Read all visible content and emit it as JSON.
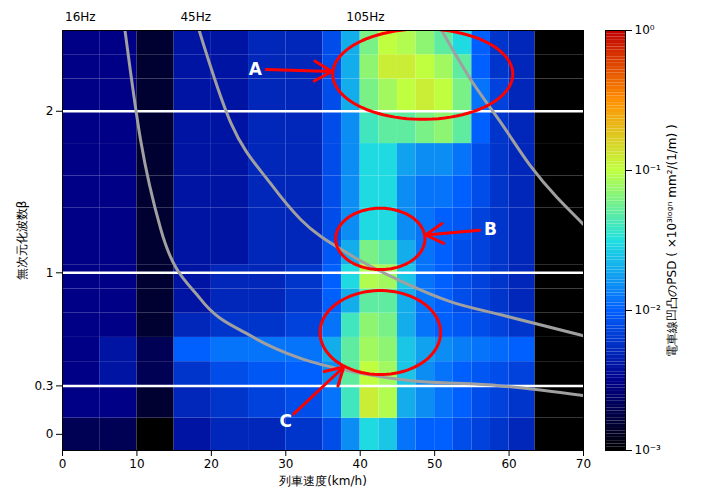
{
  "chart_data": {
    "type": "heatmap",
    "xlabel": "列車速度(km/h)",
    "ylabel": "無次元化波数β",
    "xlim": [
      0,
      70
    ],
    "xticks": [
      0,
      10,
      20,
      30,
      40,
      50,
      60,
      70
    ],
    "ylim": [
      -0.1,
      2.5
    ],
    "yticks": [
      0,
      0.3,
      1,
      2
    ],
    "x_bins": [
      0,
      5,
      10,
      15,
      20,
      25,
      30,
      35,
      37.5,
      40,
      42.5,
      45,
      47.5,
      50,
      52.5,
      55,
      57.5,
      60,
      63.5,
      70
    ],
    "y_bins": [
      -0.1,
      0.1,
      0.3,
      0.45,
      0.6,
      0.75,
      0.9,
      1.05,
      1.2,
      1.4,
      1.6,
      1.8,
      2.0,
      2.2,
      2.35,
      2.5
    ],
    "cells": [
      [
        0.002,
        0.002,
        0.001,
        0.004,
        0.005,
        0.005,
        0.006,
        0.008,
        0.015,
        0.03,
        0.025,
        0.012,
        0.01,
        0.01,
        0.008,
        0.007,
        0.006,
        0.005,
        0.001
      ],
      [
        0.003,
        0.003,
        0.0015,
        0.005,
        0.006,
        0.007,
        0.008,
        0.012,
        0.04,
        0.12,
        0.09,
        0.02,
        0.015,
        0.012,
        0.01,
        0.008,
        0.007,
        0.006,
        0.001
      ],
      [
        0.003,
        0.004,
        0.002,
        0.006,
        0.008,
        0.009,
        0.01,
        0.015,
        0.05,
        0.1,
        0.08,
        0.025,
        0.015,
        0.012,
        0.01,
        0.009,
        0.008,
        0.007,
        0.001
      ],
      [
        0.003,
        0.004,
        0.002,
        0.01,
        0.012,
        0.012,
        0.012,
        0.02,
        0.05,
        0.08,
        0.07,
        0.025,
        0.018,
        0.015,
        0.013,
        0.012,
        0.011,
        0.01,
        0.001
      ],
      [
        0.003,
        0.003,
        0.0015,
        0.005,
        0.006,
        0.006,
        0.007,
        0.012,
        0.04,
        0.07,
        0.06,
        0.02,
        0.012,
        0.01,
        0.009,
        0.008,
        0.007,
        0.006,
        0.001
      ],
      [
        0.003,
        0.003,
        0.0015,
        0.004,
        0.005,
        0.005,
        0.006,
        0.01,
        0.02,
        0.05,
        0.05,
        0.02,
        0.012,
        0.01,
        0.008,
        0.007,
        0.006,
        0.005,
        0.001
      ],
      [
        0.003,
        0.003,
        0.0015,
        0.004,
        0.005,
        0.005,
        0.006,
        0.01,
        0.03,
        0.09,
        0.08,
        0.025,
        0.012,
        0.01,
        0.008,
        0.007,
        0.006,
        0.005,
        0.001
      ],
      [
        0.003,
        0.003,
        0.0015,
        0.004,
        0.004,
        0.005,
        0.005,
        0.009,
        0.02,
        0.06,
        0.05,
        0.02,
        0.012,
        0.01,
        0.008,
        0.007,
        0.006,
        0.005,
        0.001
      ],
      [
        0.003,
        0.003,
        0.0015,
        0.004,
        0.004,
        0.005,
        0.005,
        0.008,
        0.015,
        0.03,
        0.03,
        0.015,
        0.012,
        0.01,
        0.009,
        0.007,
        0.006,
        0.005,
        0.001
      ],
      [
        0.003,
        0.003,
        0.0015,
        0.004,
        0.004,
        0.005,
        0.005,
        0.008,
        0.015,
        0.03,
        0.03,
        0.015,
        0.012,
        0.012,
        0.01,
        0.008,
        0.006,
        0.005,
        0.001
      ],
      [
        0.003,
        0.003,
        0.0015,
        0.004,
        0.004,
        0.005,
        0.005,
        0.008,
        0.015,
        0.03,
        0.03,
        0.018,
        0.015,
        0.015,
        0.012,
        0.008,
        0.006,
        0.005,
        0.001
      ],
      [
        0.003,
        0.003,
        0.0015,
        0.004,
        0.004,
        0.005,
        0.005,
        0.008,
        0.015,
        0.04,
        0.05,
        0.05,
        0.06,
        0.07,
        0.05,
        0.01,
        0.006,
        0.005,
        0.001
      ],
      [
        0.003,
        0.003,
        0.0015,
        0.004,
        0.004,
        0.005,
        0.005,
        0.008,
        0.02,
        0.06,
        0.08,
        0.1,
        0.12,
        0.1,
        0.06,
        0.012,
        0.007,
        0.005,
        0.001
      ],
      [
        0.003,
        0.003,
        0.0015,
        0.004,
        0.004,
        0.005,
        0.005,
        0.008,
        0.02,
        0.07,
        0.12,
        0.12,
        0.1,
        0.08,
        0.05,
        0.01,
        0.006,
        0.005,
        0.001
      ],
      [
        0.003,
        0.003,
        0.0015,
        0.004,
        0.004,
        0.005,
        0.005,
        0.008,
        0.02,
        0.06,
        0.1,
        0.09,
        0.07,
        0.05,
        0.03,
        0.01,
        0.006,
        0.005,
        0.001
      ]
    ],
    "colorbar": {
      "label": "電車線凹凸のPSD ( ×10³ˡᵒᵍⁿ mm²/(1/m) )",
      "range": [
        0.001,
        1
      ],
      "ticks": [
        {
          "value": 0.001,
          "label": "10⁻³"
        },
        {
          "value": 0.01,
          "label": "10⁻²"
        },
        {
          "value": 0.1,
          "label": "10⁻¹"
        },
        {
          "value": 1,
          "label": "10⁰"
        }
      ],
      "colors": [
        "#000000",
        "#00008c",
        "#0060ff",
        "#20e0e0",
        "#c0ff40",
        "#ff9000",
        "#c00000"
      ]
    },
    "reference_lines": {
      "values": [
        0.3,
        1,
        2
      ],
      "color": "#ffffff"
    },
    "curves": [
      {
        "name": "16Hz",
        "label_x": 2.4,
        "color": "#a0a0a0",
        "x": [
          8.2,
          10.5,
          13.2,
          18.5,
          25.3,
          32.0,
          38.7,
          45.4,
          58.9,
          70.0
        ],
        "y": [
          2.57,
          1.82,
          1.27,
          0.84,
          0.61,
          0.47,
          0.39,
          0.34,
          0.3,
          0.24
        ]
      },
      {
        "name": "45Hz",
        "label_x": 17.9,
        "color": "#a0a0a0",
        "x": [
          17.9,
          22.6,
          28.0,
          32.0,
          38.7,
          45.4,
          52.2,
          58.9,
          70.0
        ],
        "y": [
          2.57,
          1.93,
          1.55,
          1.33,
          1.11,
          0.95,
          0.82,
          0.74,
          0.61
        ]
      },
      {
        "name": "105Hz",
        "label_x": 40.7,
        "color": "#a0a0a0",
        "x": [
          50.1,
          54.8,
          58.9,
          62.9,
          70.0
        ],
        "y": [
          2.57,
          2.2,
          1.93,
          1.66,
          1.3
        ]
      }
    ],
    "annotations": [
      {
        "text": "A",
        "x": 25.9,
        "y": 2.26,
        "color": "#ff0000",
        "ellipse": {
          "cx": 48.4,
          "cy": 2.23,
          "rx": 12.1,
          "ry": 0.28
        }
      },
      {
        "text": "B",
        "x": 57.5,
        "y": 1.27,
        "color": "#ff0000",
        "ellipse": {
          "cx": 42.7,
          "cy": 1.21,
          "rx": 6.0,
          "ry": 0.19
        }
      },
      {
        "text": "C",
        "x": 30.0,
        "y": 0.08,
        "color": "#ff0000",
        "ellipse": {
          "cx": 42.7,
          "cy": 0.63,
          "rx": 8.1,
          "ry": 0.26
        }
      }
    ]
  }
}
